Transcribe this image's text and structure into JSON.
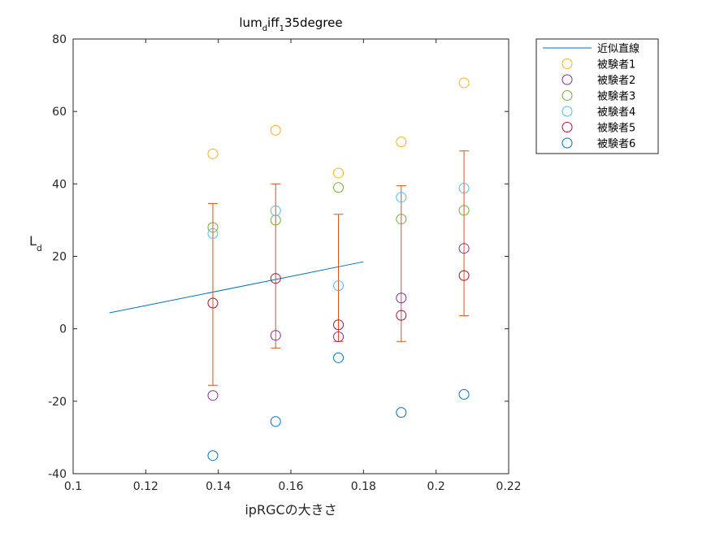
{
  "chart_data": {
    "type": "scatter",
    "title": {
      "base": "lum",
      "sub1": "d",
      "mid": "iff",
      "sub2": "1",
      "tail": "35degree"
    },
    "xlabel": "ipRGCの大きさ",
    "ylabel": {
      "base": "L",
      "sub": "d"
    },
    "xlim": [
      0.1,
      0.22
    ],
    "ylim": [
      -40,
      80
    ],
    "x_ticks": [
      0.1,
      0.12,
      0.14,
      0.16,
      0.18,
      0.2,
      0.22
    ],
    "x_tick_labels": [
      "0.1",
      "0.12",
      "0.14",
      "0.16",
      "0.18",
      "0.2",
      "0.22"
    ],
    "y_ticks": [
      -40,
      -20,
      0,
      20,
      40,
      60,
      80
    ],
    "y_tick_labels": [
      "-40",
      "-20",
      "0",
      "20",
      "40",
      "60",
      "80"
    ],
    "legend_position": "outside-top-right",
    "fit_line": {
      "name": "近似直線",
      "color": "#0072BD",
      "x": [
        0.11,
        0.18
      ],
      "y": [
        4.4,
        18.5
      ]
    },
    "series": [
      {
        "name": "被験者1",
        "color": "#EDB120",
        "x": [
          0.1385,
          0.1558,
          0.1731,
          0.1904,
          0.2077
        ],
        "y": [
          48.3,
          54.8,
          43.0,
          51.6,
          67.9
        ]
      },
      {
        "name": "被験者2",
        "color": "#7E2F8E",
        "x": [
          0.1385,
          0.1558,
          0.1731,
          0.1904,
          0.2077
        ],
        "y": [
          -18.4,
          -1.8,
          -2.2,
          8.5,
          22.2
        ]
      },
      {
        "name": "被験者3",
        "color": "#77AC30",
        "x": [
          0.1385,
          0.1558,
          0.1731,
          0.1904,
          0.2077
        ],
        "y": [
          28.0,
          30.0,
          39.0,
          30.3,
          32.7
        ]
      },
      {
        "name": "被験者4",
        "color": "#4DBEEE",
        "x": [
          0.1385,
          0.1558,
          0.1731,
          0.1904,
          0.2077
        ],
        "y": [
          26.3,
          32.6,
          11.9,
          36.3,
          38.8
        ]
      },
      {
        "name": "被験者5",
        "color": "#A2142F",
        "x": [
          0.1385,
          0.1558,
          0.1731,
          0.1904,
          0.2077
        ],
        "y": [
          7.1,
          13.9,
          1.1,
          3.7,
          14.7
        ]
      },
      {
        "name": "被験者6",
        "color": "#0072BD",
        "x": [
          0.1385,
          0.1558,
          0.1731,
          0.1904,
          0.2077
        ],
        "y": [
          -35.0,
          -25.6,
          -8.0,
          -23.1,
          -18.1
        ]
      }
    ],
    "error_bars": {
      "color": "#D95319",
      "x": [
        0.1385,
        0.1558,
        0.1731,
        0.1904,
        0.2077
      ],
      "mean": [
        9.4,
        17.3,
        14.1,
        17.9,
        26.4
      ],
      "upper": [
        34.6,
        40.0,
        31.6,
        39.5,
        49.1
      ],
      "lower": [
        -15.6,
        -5.3,
        -3.5,
        -3.5,
        3.6
      ]
    }
  }
}
